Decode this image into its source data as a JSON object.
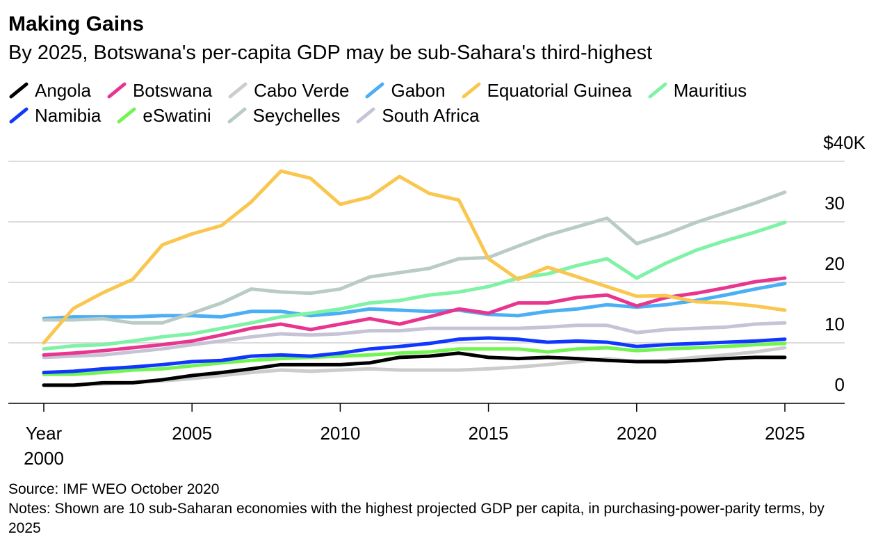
{
  "title": "Making Gains",
  "subtitle": "By 2025, Botswana's per-capita GDP may be sub-Sahara's third-highest",
  "source": "Source: IMF WEO October 2020",
  "notes": "Notes: Shown are 10 sub-Saharan economies with the highest projected GDP per capita, in purchasing-power-parity terms, by 2025",
  "chart_data": {
    "type": "line",
    "title": "Making Gains",
    "ylim": [
      0,
      40
    ],
    "y_ticks": [
      {
        "v": 0,
        "label": "0"
      },
      {
        "v": 10,
        "label": "10"
      },
      {
        "v": 20,
        "label": "20"
      },
      {
        "v": 30,
        "label": "30"
      },
      {
        "v": 40,
        "label": "$40K"
      }
    ],
    "x_ticks": [
      {
        "v": 2000,
        "label": "Year",
        "label2": "2000"
      },
      {
        "v": 2005,
        "label": "2005"
      },
      {
        "v": 2010,
        "label": "2010"
      },
      {
        "v": 2015,
        "label": "2015"
      },
      {
        "v": 2020,
        "label": "2020"
      },
      {
        "v": 2025,
        "label": "2025"
      }
    ],
    "xlim": [
      2000,
      2025
    ],
    "grid": true,
    "legend_position": "top",
    "x": [
      2000,
      2001,
      2002,
      2003,
      2004,
      2005,
      2006,
      2007,
      2008,
      2009,
      2010,
      2011,
      2012,
      2013,
      2014,
      2015,
      2016,
      2017,
      2018,
      2019,
      2020,
      2021,
      2022,
      2023,
      2024,
      2025
    ],
    "series": [
      {
        "name": "Angola",
        "color": "#000000",
        "values": [
          3,
          3,
          3.4,
          3.4,
          3.9,
          4.6,
          5.1,
          5.7,
          6.4,
          6.4,
          6.4,
          6.7,
          7.6,
          7.8,
          8.3,
          7.6,
          7.4,
          7.6,
          7.4,
          7.1,
          6.9,
          6.9,
          7.1,
          7.4,
          7.6,
          7.6
        ]
      },
      {
        "name": "Botswana",
        "color": "#e8368f",
        "values": [
          8,
          8.3,
          8.7,
          9.2,
          9.7,
          10.3,
          11.3,
          12.4,
          13.1,
          12.2,
          13.1,
          14,
          13.1,
          14.3,
          15.6,
          14.9,
          16.6,
          16.6,
          17.5,
          17.9,
          16.1,
          17.5,
          18.2,
          19.1,
          20.1,
          20.7
        ]
      },
      {
        "name": "Cabo Verde",
        "color": "#cccccc",
        "values": [
          3,
          3,
          3.2,
          3.4,
          3.7,
          4.1,
          4.6,
          5.1,
          5.5,
          5.3,
          5.5,
          5.7,
          5.5,
          5.5,
          5.5,
          5.7,
          6,
          6.4,
          6.9,
          7.4,
          6.9,
          7.1,
          7.6,
          8,
          8.5,
          9.2
        ]
      },
      {
        "name": "Gabon",
        "color": "#4aaff5",
        "values": [
          14,
          14.3,
          14.3,
          14.3,
          14.5,
          14.5,
          14.3,
          15.2,
          15.2,
          14.5,
          14.9,
          15.6,
          15.4,
          15.2,
          15.4,
          14.7,
          14.5,
          15.2,
          15.6,
          16.3,
          15.9,
          16.3,
          17,
          17.9,
          18.9,
          19.8
        ]
      },
      {
        "name": "Equatorial Guinea",
        "color": "#f9c74f",
        "values": [
          10,
          15.7,
          18.3,
          20.5,
          26.2,
          28,
          29.4,
          33.3,
          38.4,
          37.2,
          32.9,
          34.1,
          37.5,
          34.7,
          33.6,
          23.9,
          20.5,
          22.5,
          20.9,
          19.3,
          17.7,
          17.8,
          16.8,
          16.6,
          16.1,
          15.4
        ]
      },
      {
        "name": "Mauritius",
        "color": "#7ef2a5",
        "values": [
          9,
          9.5,
          9.7,
          10.3,
          11,
          11.5,
          12.4,
          13.3,
          14.3,
          14.9,
          15.6,
          16.6,
          17,
          17.9,
          18.4,
          19.3,
          20.7,
          21.4,
          22.8,
          23.9,
          20.7,
          23.2,
          25.3,
          26.9,
          28.3,
          29.9
        ]
      },
      {
        "name": "Namibia",
        "color": "#0f37ff",
        "values": [
          5.1,
          5.3,
          5.7,
          6,
          6.4,
          6.9,
          7.1,
          7.8,
          8,
          7.8,
          8.3,
          9,
          9.4,
          9.9,
          10.6,
          10.8,
          10.6,
          10.1,
          10.3,
          10.1,
          9.4,
          9.7,
          9.9,
          10.1,
          10.3,
          10.6
        ]
      },
      {
        "name": "eSwatini",
        "color": "#72f552",
        "values": [
          4.8,
          4.8,
          5.1,
          5.5,
          5.7,
          6.2,
          6.7,
          7.1,
          7.4,
          7.6,
          7.8,
          8,
          8.3,
          8.5,
          9,
          9,
          9,
          8.5,
          9,
          9.2,
          8.7,
          9,
          9.2,
          9.4,
          9.7,
          9.9
        ]
      },
      {
        "name": "Seychelles",
        "color": "#b8ccc5",
        "values": [
          13.8,
          13.8,
          14,
          13.3,
          13.3,
          14.9,
          16.6,
          18.9,
          18.4,
          18.2,
          18.9,
          20.9,
          21.6,
          22.3,
          23.9,
          24.1,
          26,
          27.8,
          29.2,
          30.6,
          26.4,
          28,
          29.9,
          31.5,
          33.1,
          34.9
        ]
      },
      {
        "name": "South Africa",
        "color": "#c6c3d6",
        "values": [
          7.6,
          7.8,
          8,
          8.5,
          9,
          9.7,
          10.3,
          11,
          11.5,
          11.3,
          11.5,
          12,
          12,
          12.4,
          12.4,
          12.4,
          12.4,
          12.6,
          12.9,
          12.9,
          11.7,
          12.2,
          12.4,
          12.6,
          13.1,
          13.3
        ]
      }
    ],
    "legend_rows": [
      [
        0,
        1,
        2,
        3,
        4,
        5
      ],
      [
        6,
        7,
        8,
        9
      ]
    ],
    "draw_order": [
      2,
      0,
      7,
      6,
      9,
      3,
      1,
      5,
      8,
      4
    ]
  }
}
